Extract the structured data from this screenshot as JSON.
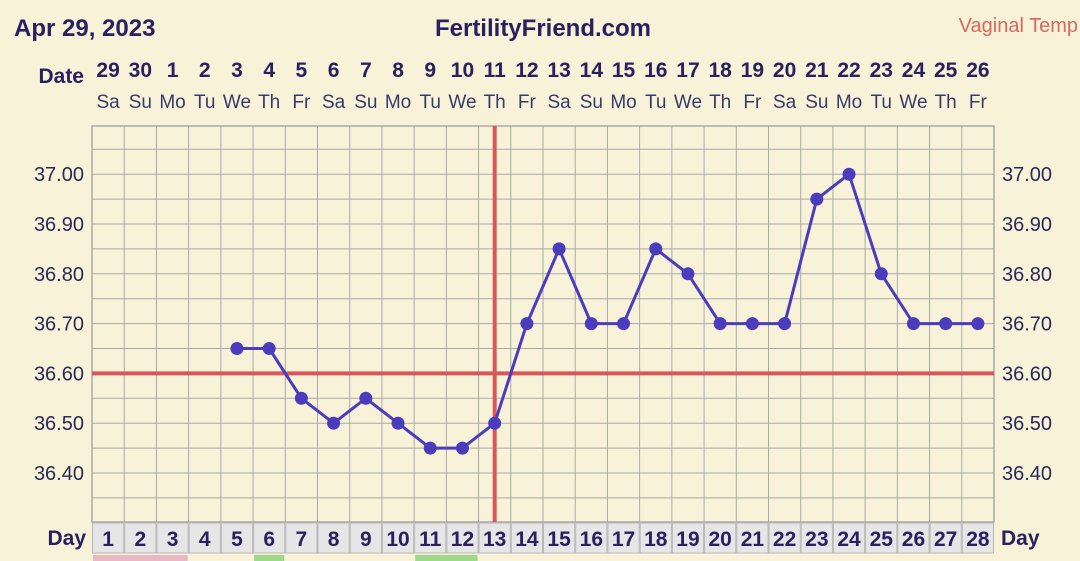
{
  "header": {
    "date": "Apr 29, 2023",
    "site": "FertilityFriend.com",
    "temp_mode": "Vaginal Temp"
  },
  "labels": {
    "date_row": "Date",
    "day_row": "Day"
  },
  "colors": {
    "background": "#f8f3d8",
    "grid": "#a9a9a9",
    "temperature_line": "#4a3cbd",
    "coverline": "#d9575a",
    "ovulation_line": "#d9575a",
    "day_cell": "#e6e6e6",
    "text": "#2a2060"
  },
  "chart_data": {
    "type": "line",
    "title": "",
    "xlabel": "Day",
    "ylabel": "",
    "dates": [
      "29",
      "30",
      "1",
      "2",
      "3",
      "4",
      "5",
      "6",
      "7",
      "8",
      "9",
      "10",
      "11",
      "12",
      "13",
      "14",
      "15",
      "16",
      "17",
      "18",
      "19",
      "20",
      "21",
      "22",
      "23",
      "24",
      "25",
      "26"
    ],
    "weekdays": [
      "Sa",
      "Su",
      "Mo",
      "Tu",
      "We",
      "Th",
      "Fr",
      "Sa",
      "Su",
      "Mo",
      "Tu",
      "We",
      "Th",
      "Fr",
      "Sa",
      "Su",
      "Mo",
      "Tu",
      "We",
      "Th",
      "Fr",
      "Sa",
      "Su",
      "Mo",
      "Tu",
      "We",
      "Th",
      "Fr"
    ],
    "cycle_days": [
      1,
      2,
      3,
      4,
      5,
      6,
      7,
      8,
      9,
      10,
      11,
      12,
      13,
      14,
      15,
      16,
      17,
      18,
      19,
      20,
      21,
      22,
      23,
      24,
      25,
      26,
      27,
      28
    ],
    "y_ticks": [
      "37.00",
      "36.90",
      "36.80",
      "36.70",
      "36.60",
      "36.50",
      "36.40"
    ],
    "ylim": [
      36.31,
      37.1
    ],
    "grid": true,
    "series": [
      {
        "x": [
          5,
          6,
          7,
          8,
          9,
          10,
          11,
          12,
          13,
          14,
          15,
          16,
          17,
          18,
          19,
          20,
          21,
          22,
          23,
          24,
          25,
          26,
          27,
          28
        ],
        "values": [
          36.65,
          36.65,
          36.55,
          36.5,
          36.55,
          36.5,
          36.45,
          36.45,
          36.5,
          36.7,
          36.85,
          36.7,
          36.7,
          36.85,
          36.8,
          36.7,
          36.7,
          36.7,
          36.95,
          37.0,
          36.8,
          36.7,
          36.7,
          36.7
        ]
      }
    ],
    "coverline": 36.6,
    "ovulation_day": 13
  }
}
